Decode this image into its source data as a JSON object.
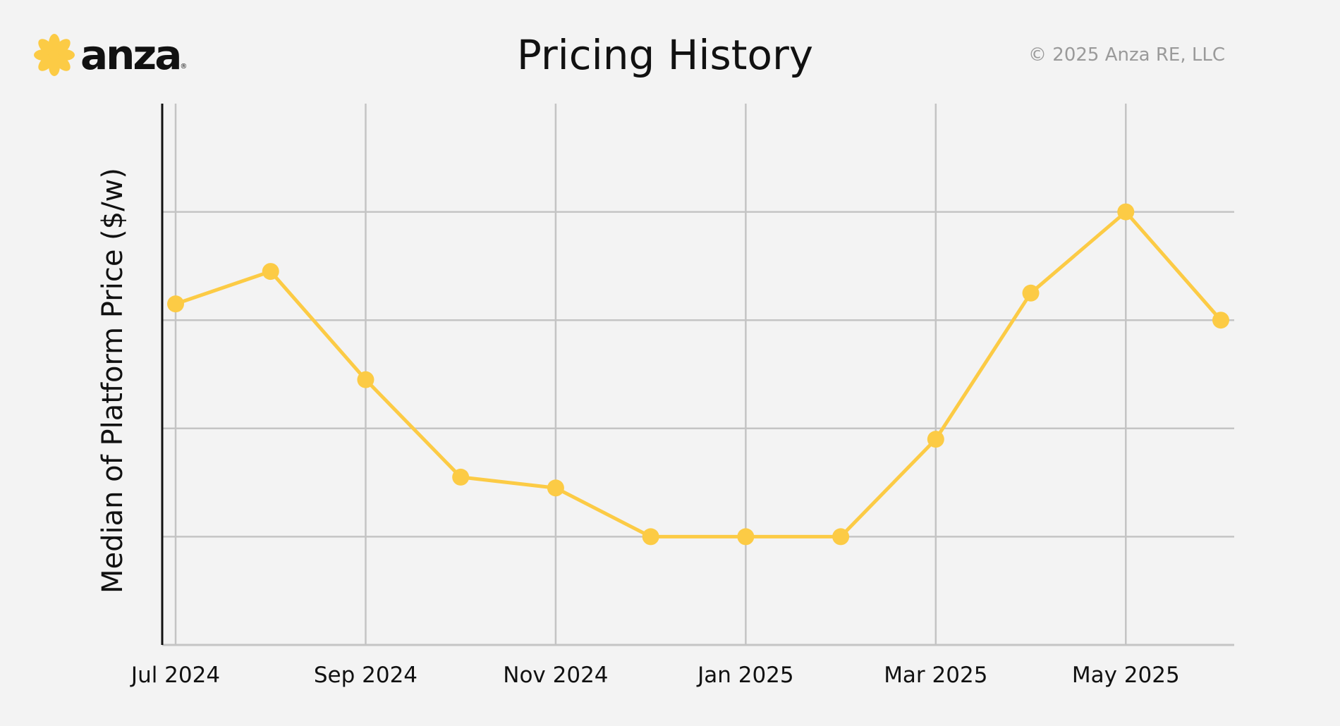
{
  "header": {
    "logo_text": "anza",
    "logo_mark": "®",
    "copyright": "© 2025 Anza RE, LLC"
  },
  "colors": {
    "accent": "#fccb45",
    "grid": "#c4c4c4",
    "axis": "#111111",
    "background": "#f3f3f3"
  },
  "chart_data": {
    "type": "line",
    "title": "Pricing History",
    "xlabel": "",
    "ylabel": "Median of Platform Price ($/w)",
    "x": [
      "2024-07",
      "2024-08",
      "2024-09",
      "2024-10",
      "2024-11",
      "2024-12",
      "2025-01",
      "2025-02",
      "2025-03",
      "2025-04",
      "2025-05",
      "2025-06"
    ],
    "x_tick_labels": [
      {
        "x": "2024-07",
        "label": "Jul 2024"
      },
      {
        "x": "2024-09",
        "label": "Sep 2024"
      },
      {
        "x": "2024-11",
        "label": "Nov 2024"
      },
      {
        "x": "2025-01",
        "label": "Jan 2025"
      },
      {
        "x": "2025-03",
        "label": "Mar 2025"
      },
      {
        "x": "2025-05",
        "label": "May 2025"
      }
    ],
    "series": [
      {
        "values": [
          3.15,
          3.45,
          2.45,
          1.55,
          1.45,
          1.0,
          1.0,
          1.0,
          1.9,
          3.25,
          4.0,
          3.0
        ]
      }
    ],
    "ylim": [
      0,
      5
    ],
    "y_gridlines": [
      1,
      2,
      3,
      4
    ],
    "grid": true,
    "legend": "none"
  }
}
